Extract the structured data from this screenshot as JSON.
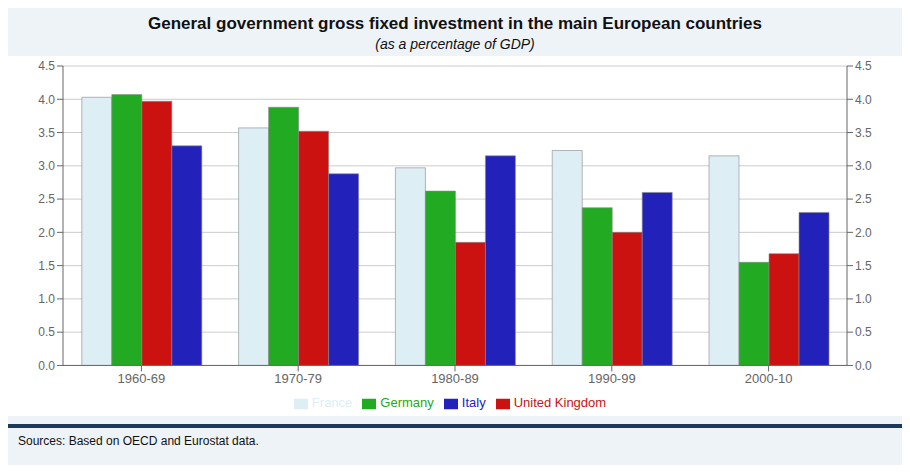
{
  "chart_data": {
    "type": "bar",
    "title": "General government gross fixed investment in the main European countries",
    "subtitle": "(as a percentage of GDP)",
    "source": "Sources: Based on OECD and Eurostat data.",
    "categories": [
      "1960-69",
      "1970-79",
      "1980-89",
      "1990-99",
      "2000-10"
    ],
    "series": [
      {
        "name": "France",
        "color": "#ddeef5",
        "values": [
          4.03,
          3.57,
          2.97,
          3.23,
          3.15
        ]
      },
      {
        "name": "Germany",
        "color": "#22aa22",
        "values": [
          4.07,
          3.88,
          2.62,
          2.37,
          1.55
        ]
      },
      {
        "name": "United Kingdom",
        "color": "#cc1111",
        "values": [
          3.97,
          3.52,
          1.85,
          2.0,
          1.68
        ]
      },
      {
        "name": "Italy",
        "color": "#2222bb",
        "values": [
          3.3,
          2.88,
          3.15,
          2.6,
          2.3
        ]
      }
    ],
    "ylim": [
      0,
      4.5
    ],
    "yticks": [
      {
        "value": 0.0,
        "label": "0.0"
      },
      0.5,
      {
        "value": 1.0,
        "label": "1.0"
      },
      1.5,
      {
        "value": 2.0,
        "label": "2.0"
      },
      2.5,
      {
        "value": 3.0,
        "label": "3.0"
      },
      3.5,
      {
        "value": 4.0,
        "label": "4.0"
      },
      4.5
    ],
    "grid": true,
    "legend": "bottom"
  }
}
